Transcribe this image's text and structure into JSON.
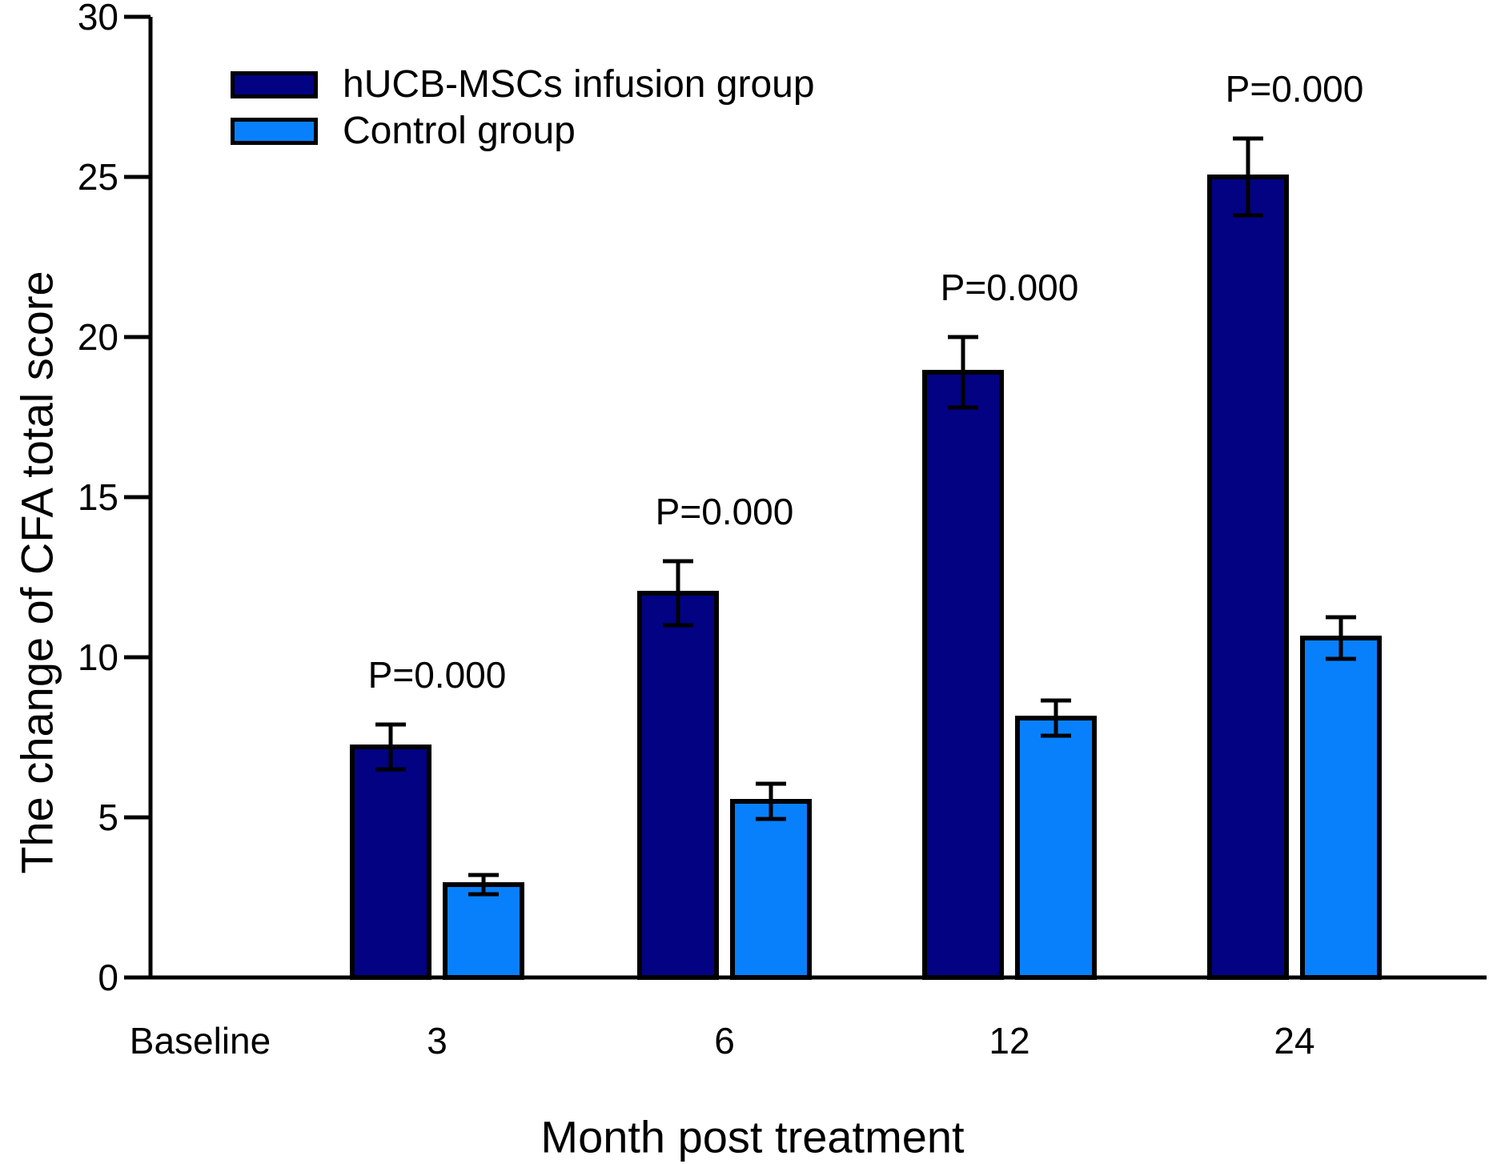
{
  "figure": {
    "background": "#ffffff",
    "text_color": "#000000"
  },
  "legend": {
    "position": "top-left",
    "items": [
      {
        "label": "hUCB-MSCs infusion group",
        "swatch_color": "#020283"
      },
      {
        "label": "Control group",
        "swatch_color": "#0880fc"
      }
    ]
  },
  "chart_data": {
    "type": "bar",
    "title": "",
    "xlabel": "Month post treatment",
    "ylabel": "The change of CFA total score",
    "categories": [
      "Baseline",
      "3",
      "6",
      "12",
      "24"
    ],
    "series": [
      {
        "name": "hUCB-MSCs infusion group",
        "color": "#020283",
        "values": [
          null,
          7.2,
          12.0,
          18.9,
          25.0
        ],
        "errors": [
          null,
          0.7,
          1.0,
          1.1,
          1.2
        ]
      },
      {
        "name": "Control group",
        "color": "#0880fc",
        "values": [
          null,
          2.9,
          5.5,
          8.1,
          10.6
        ],
        "errors": [
          null,
          0.3,
          0.55,
          0.55,
          0.65
        ]
      }
    ],
    "annotations": [
      {
        "text": "P=0.000",
        "category": "3"
      },
      {
        "text": "P=0.000",
        "category": "6"
      },
      {
        "text": "P=0.000",
        "category": "12"
      },
      {
        "text": "P=0.000",
        "category": "24"
      }
    ],
    "ylim": [
      0,
      30
    ],
    "yticks": [
      0,
      5,
      10,
      15,
      20,
      25,
      30
    ],
    "grid": false,
    "legend_position": "top-left",
    "bar_outline_color": "#000000",
    "error_bar_color": "#000000",
    "axis_color": "#000000"
  }
}
